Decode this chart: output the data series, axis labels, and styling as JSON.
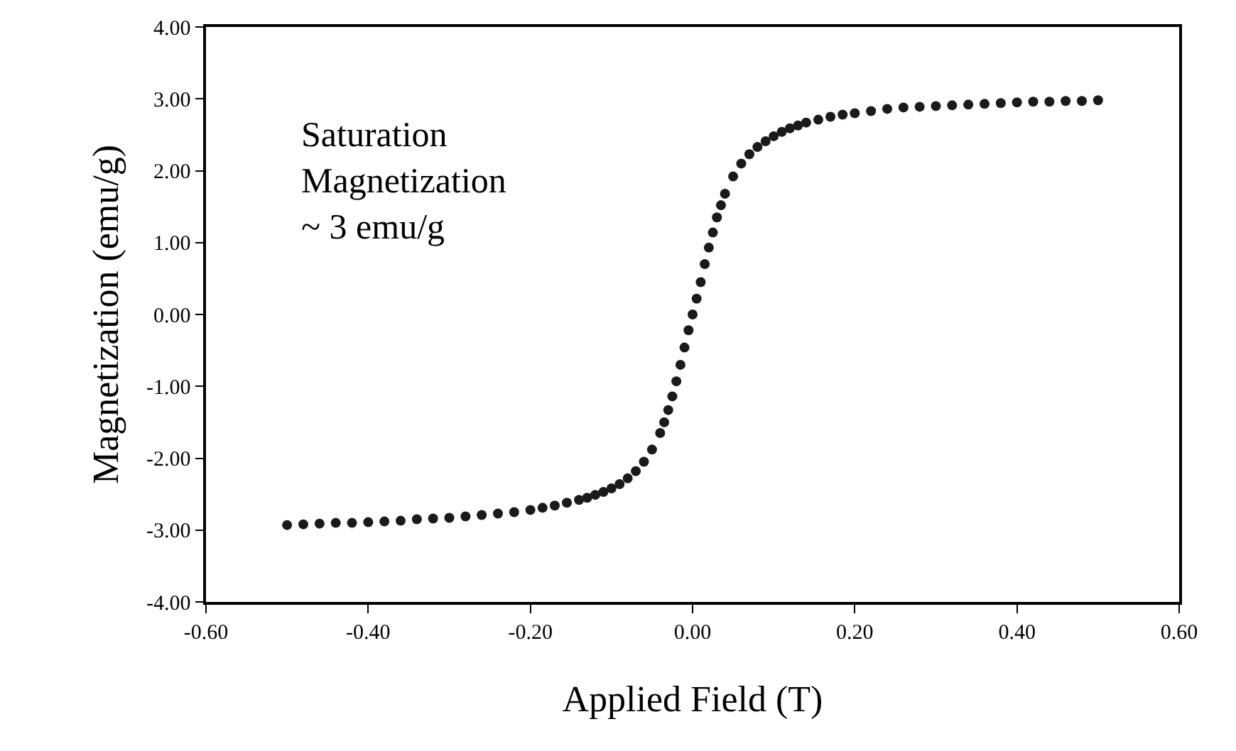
{
  "chart_data": {
    "type": "scatter",
    "xlabel": "Applied Field (T)",
    "ylabel": "Magnetization (emu/g)",
    "annotations": [
      "Saturation\nMagnetization\n~ 3 emu/g"
    ],
    "xlim": [
      -0.6,
      0.6
    ],
    "ylim": [
      -4,
      4
    ],
    "xticks": [
      {
        "value": -0.6,
        "label": "-0.60"
      },
      {
        "value": -0.4,
        "label": "-0.40"
      },
      {
        "value": -0.2,
        "label": "-0.20"
      },
      {
        "value": 0,
        "label": "0.00"
      },
      {
        "value": 0.2,
        "label": "0.20"
      },
      {
        "value": 0.4,
        "label": "0.40"
      },
      {
        "value": 0.6,
        "label": "0.60"
      }
    ],
    "yticks": [
      {
        "value": -4,
        "label": "-4.00"
      },
      {
        "value": -3,
        "label": "-3.00"
      },
      {
        "value": -2,
        "label": "-2.00"
      },
      {
        "value": -1,
        "label": "-1.00"
      },
      {
        "value": 0,
        "label": "0.00"
      },
      {
        "value": 1,
        "label": "1.00"
      },
      {
        "value": 2,
        "label": "2.00"
      },
      {
        "value": 3,
        "label": "3.00"
      },
      {
        "value": 4,
        "label": "4.00"
      }
    ],
    "marker": "circle",
    "series": [
      {
        "color": "#1a1a1a",
        "x": [
          -0.5,
          -0.48,
          -0.46,
          -0.44,
          -0.42,
          -0.4,
          -0.38,
          -0.36,
          -0.34,
          -0.32,
          -0.3,
          -0.28,
          -0.26,
          -0.24,
          -0.22,
          -0.2,
          -0.185,
          -0.17,
          -0.155,
          -0.14,
          -0.13,
          -0.12,
          -0.11,
          -0.1,
          -0.09,
          -0.08,
          -0.07,
          -0.06,
          -0.05,
          -0.04,
          -0.035,
          -0.03,
          -0.025,
          -0.02,
          -0.015,
          -0.01,
          -0.005,
          0,
          0.005,
          0.01,
          0.015,
          0.02,
          0.025,
          0.03,
          0.035,
          0.04,
          0.05,
          0.06,
          0.07,
          0.08,
          0.09,
          0.1,
          0.11,
          0.12,
          0.13,
          0.14,
          0.155,
          0.17,
          0.185,
          0.2,
          0.22,
          0.24,
          0.26,
          0.28,
          0.3,
          0.32,
          0.34,
          0.36,
          0.38,
          0.4,
          0.42,
          0.44,
          0.46,
          0.48,
          0.5
        ],
        "values": [
          -2.93,
          -2.92,
          -2.91,
          -2.9,
          -2.9,
          -2.89,
          -2.88,
          -2.87,
          -2.85,
          -2.84,
          -2.83,
          -2.81,
          -2.79,
          -2.77,
          -2.75,
          -2.72,
          -2.69,
          -2.66,
          -2.62,
          -2.58,
          -2.55,
          -2.51,
          -2.47,
          -2.42,
          -2.36,
          -2.28,
          -2.18,
          -2.05,
          -1.88,
          -1.65,
          -1.5,
          -1.33,
          -1.14,
          -0.93,
          -0.7,
          -0.46,
          -0.22,
          0,
          0.22,
          0.45,
          0.7,
          0.93,
          1.14,
          1.35,
          1.52,
          1.68,
          1.92,
          2.1,
          2.23,
          2.33,
          2.41,
          2.48,
          2.54,
          2.59,
          2.63,
          2.67,
          2.71,
          2.75,
          2.78,
          2.8,
          2.83,
          2.86,
          2.88,
          2.89,
          2.9,
          2.91,
          2.92,
          2.93,
          2.94,
          2.95,
          2.96,
          2.96,
          2.97,
          2.97,
          2.98
        ]
      }
    ]
  }
}
